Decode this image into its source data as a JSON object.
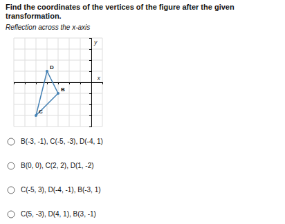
{
  "chart_data": {
    "type": "polygon",
    "title": "Find the coordinates of the vertices of the figure after the given transformation.",
    "subtitle": "Reflection across the x-axis",
    "x": [
      -3,
      -5,
      -4
    ],
    "values": [
      -1,
      -3,
      1
    ],
    "point_labels": [
      "B",
      "C",
      "D"
    ],
    "xlabel": "x",
    "ylabel": "y",
    "xlim": [
      -7,
      1
    ],
    "ylim": [
      -4,
      4
    ],
    "xticks": [
      -7,
      -6,
      -5,
      -4,
      -3,
      -2,
      -1,
      0,
      1
    ],
    "yticks": [
      -4,
      -3,
      -2,
      -1,
      0,
      1,
      2,
      3,
      4
    ],
    "grid": true,
    "tick_labels": false,
    "options": [
      "B(-3, -1), C(-5, -3), D(-4, 1)",
      "B(0, 0), C(2, 2), D(1, -2)",
      "C(-5, 3), D(-4, -1), B(-3, 1)",
      "C(5, -3), D(4, 1), B(3, -1)"
    ]
  }
}
